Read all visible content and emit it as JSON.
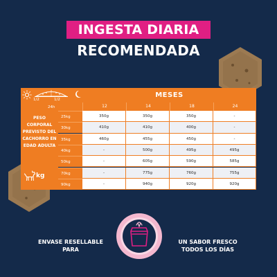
{
  "header": {
    "title_line1": "INGESTA DIARIA",
    "title_line2": "RECOMENDADA"
  },
  "table": {
    "half_left": "1/2",
    "half_right": "1/2",
    "hours": "24h",
    "side_label_lines": [
      "PESO",
      "CORPORAL",
      "PREVISTO DEL",
      "CACHORRO EN",
      "EDAD ADULTA"
    ],
    "unit_label": "kg"
  },
  "chart_data": {
    "type": "table",
    "title": "MESES",
    "columns": [
      "12",
      "14",
      "18",
      "24"
    ],
    "rows": [
      {
        "weight": "25kg",
        "values": [
          "350g",
          "350g",
          "350g",
          "-"
        ]
      },
      {
        "weight": "30kg",
        "values": [
          "410g",
          "410g",
          "400g",
          "-"
        ]
      },
      {
        "weight": "35kg",
        "values": [
          "460g",
          "455g",
          "450g",
          "-"
        ]
      },
      {
        "weight": "40kg",
        "values": [
          "-",
          "500g",
          "495g",
          "495g"
        ]
      },
      {
        "weight": "50kg",
        "values": [
          "-",
          "605g",
          "590g",
          "585g"
        ]
      },
      {
        "weight": "70kg",
        "values": [
          "-",
          "775g",
          "760g",
          "755g"
        ]
      },
      {
        "weight": "90kg",
        "values": [
          "-",
          "940g",
          "920g",
          "920g"
        ]
      }
    ]
  },
  "footer": {
    "left_lines": [
      "ENVASE RESELLABLE",
      "PARA"
    ],
    "right_lines": [
      "UN SABOR FRESCO",
      "TODOS LOS DÍAS"
    ]
  },
  "colors": {
    "background": "#142a4a",
    "accent_orange": "#ef7d22",
    "accent_pink": "#e01f83",
    "circle_pink": "#f4b8cf"
  },
  "icons": [
    "sun-icon",
    "food-bowl-icon",
    "moon-icon",
    "dog-icon",
    "resealable-bag-icon",
    "kibble-icon"
  ]
}
